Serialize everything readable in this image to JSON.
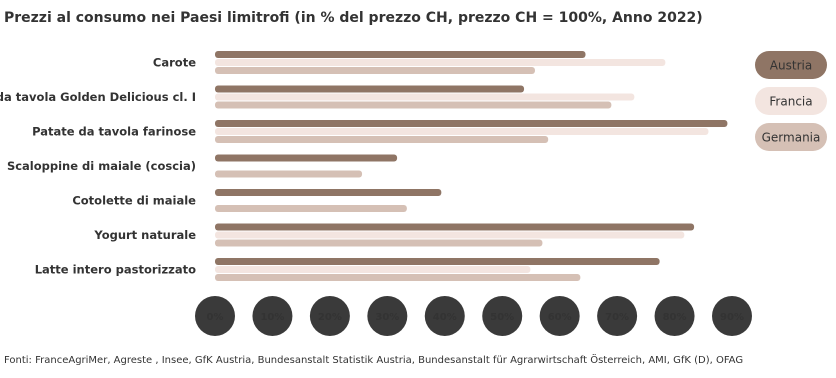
{
  "chart_data": {
    "type": "hbar",
    "title": "Prezzi al consumo nei Paesi limitrofi (in % del prezzo CH, prezzo CH = 100%, Anno 2022)",
    "categories": [
      "Carote",
      "Mele da tavola Golden Delicious cl. I",
      "Patate da tavola farinose",
      "Scaloppine di maiale (coscia)",
      "Cotolette di maiale",
      "Yogurt naturale",
      "Latte intero pastorizzato"
    ],
    "series": [
      {
        "name": "Austria",
        "color": "#8f7565",
        "values": [
          64.5,
          53.8,
          89.2,
          31.7,
          39.4,
          83.4,
          77.4
        ]
      },
      {
        "name": "Francia",
        "color": "#f3e5e0",
        "values": [
          78.4,
          73,
          85.9,
          null,
          null,
          81.7,
          54.9
        ]
      },
      {
        "name": "Germania",
        "color": "#d5c0b5",
        "values": [
          55.7,
          69,
          58,
          25.6,
          33.4,
          57,
          63.6
        ]
      }
    ],
    "xlim": [
      0,
      90
    ],
    "xticks": [
      {
        "value": 0,
        "label": "0%"
      },
      {
        "value": 10,
        "label": "10%"
      },
      {
        "value": 20,
        "label": "20%"
      },
      {
        "value": 30,
        "label": "30%"
      },
      {
        "value": 40,
        "label": "40%"
      },
      {
        "value": 50,
        "label": "50%"
      },
      {
        "value": 60,
        "label": "60%"
      },
      {
        "value": 70,
        "label": "70%"
      },
      {
        "value": 80,
        "label": "80%"
      },
      {
        "value": 90,
        "label": "90%"
      }
    ],
    "legend": "right",
    "source": "Fonti: FranceAgriMer, Agreste , Insee, GfK Austria, Bundesanstalt Statistik Austria, Bundesanstalt für Agrarwirtschaft Österreich, AMI, GfK (D), OFAG"
  }
}
